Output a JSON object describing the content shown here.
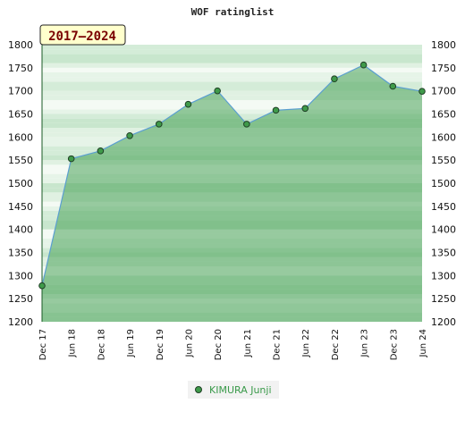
{
  "chart_data": {
    "type": "area",
    "title": "WOF ratinglist",
    "badge": "2017–2024",
    "xlabel": "",
    "ylabel": "",
    "ylim": [
      1200,
      1800
    ],
    "yticks": [
      1200,
      1250,
      1300,
      1350,
      1400,
      1450,
      1500,
      1550,
      1600,
      1650,
      1700,
      1750,
      1800
    ],
    "categories": [
      "Dec 17",
      "Jun 18",
      "Dec 18",
      "Jun 19",
      "Dec 19",
      "Jun 20",
      "Dec 20",
      "Jun 21",
      "Dec 21",
      "Jun 22",
      "Dec 22",
      "Jun 23",
      "Dec 23",
      "Jun 24"
    ],
    "series": [
      {
        "name": "KIMURA Junji",
        "values": [
          1278,
          1553,
          1570,
          1603,
          1628,
          1671,
          1700,
          1628,
          1658,
          1662,
          1726,
          1756,
          1710,
          1699
        ]
      }
    ],
    "grid": true,
    "legend_position": "bottom-center",
    "colors": {
      "area_fill": "#3a9a4a",
      "line": "#5b9fd0",
      "marker": "#3f9a4a",
      "marker_edge": "#1f3f25",
      "badge_bg": "#ffffcc",
      "badge_border": "#222222"
    }
  }
}
